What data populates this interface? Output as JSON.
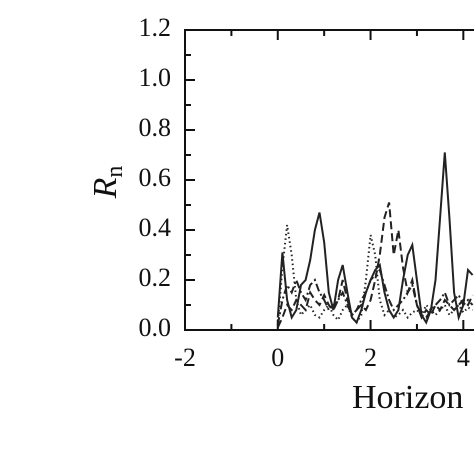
{
  "chart_data": {
    "type": "line",
    "ylabel": "R",
    "ylabel_subscript": "n",
    "xlabel": "Horizon",
    "x": [
      0,
      0.1,
      0.2,
      0.3,
      0.4,
      0.5,
      0.6,
      0.7,
      0.8,
      0.9,
      1.0,
      1.1,
      1.2,
      1.3,
      1.4,
      1.5,
      1.6,
      1.7,
      1.8,
      1.9,
      2.0,
      2.1,
      2.2,
      2.3,
      2.4,
      2.5,
      2.6,
      2.7,
      2.8,
      2.9,
      3.0,
      3.1,
      3.2,
      3.3,
      3.4,
      3.5,
      3.6,
      3.7,
      3.8,
      3.9,
      4.0,
      4.1,
      4.2
    ],
    "series": [
      {
        "color": "#222",
        "dash": "solid",
        "values": [
          0.05,
          0.31,
          0.12,
          0.05,
          0.08,
          0.18,
          0.2,
          0.28,
          0.4,
          0.47,
          0.35,
          0.15,
          0.08,
          0.2,
          0.26,
          0.15,
          0.05,
          0.03,
          0.08,
          0.15,
          0.2,
          0.24,
          0.26,
          0.15,
          0.08,
          0.05,
          0.08,
          0.2,
          0.3,
          0.34,
          0.2,
          0.06,
          0.03,
          0.08,
          0.2,
          0.45,
          0.71,
          0.45,
          0.15,
          0.05,
          0.1,
          0.24,
          0.22
        ]
      },
      {
        "color": "#222",
        "dash": "dotted",
        "values": [
          0.02,
          0.25,
          0.42,
          0.3,
          0.12,
          0.06,
          0.08,
          0.1,
          0.06,
          0.05,
          0.08,
          0.1,
          0.06,
          0.04,
          0.08,
          0.1,
          0.05,
          0.03,
          0.06,
          0.2,
          0.38,
          0.3,
          0.12,
          0.06,
          0.08,
          0.05,
          0.06,
          0.08,
          0.05,
          0.07,
          0.08,
          0.06,
          0.1,
          0.08,
          0.06,
          0.08,
          0.1,
          0.06,
          0.08,
          0.1,
          0.07,
          0.09,
          0.08
        ]
      },
      {
        "color": "#222",
        "dash": "dashed",
        "values": [
          0.01,
          0.05,
          0.1,
          0.08,
          0.12,
          0.1,
          0.08,
          0.15,
          0.12,
          0.1,
          0.14,
          0.1,
          0.08,
          0.12,
          0.2,
          0.12,
          0.06,
          0.08,
          0.1,
          0.08,
          0.12,
          0.2,
          0.3,
          0.45,
          0.51,
          0.3,
          0.4,
          0.25,
          0.15,
          0.2,
          0.1,
          0.05,
          0.08,
          0.06,
          0.1,
          0.08,
          0.12,
          0.1,
          0.08,
          0.1,
          0.12,
          0.1,
          0.14
        ]
      },
      {
        "color": "#222",
        "dash": "dashdot",
        "values": [
          0.02,
          0.12,
          0.18,
          0.15,
          0.2,
          0.15,
          0.12,
          0.18,
          0.2,
          0.15,
          0.12,
          0.08,
          0.1,
          0.12,
          0.15,
          0.1,
          0.06,
          0.08,
          0.12,
          0.15,
          0.2,
          0.22,
          0.24,
          0.18,
          0.12,
          0.08,
          0.1,
          0.12,
          0.15,
          0.18,
          0.1,
          0.06,
          0.05,
          0.08,
          0.1,
          0.12,
          0.15,
          0.1,
          0.12,
          0.14,
          0.1,
          0.12,
          0.1
        ]
      }
    ],
    "xlim": [
      -2,
      4.23
    ],
    "xticks": [
      -2,
      0,
      2,
      4
    ],
    "xticks_minor": [
      -1,
      1,
      3
    ],
    "ylim": [
      0,
      1.2
    ],
    "yticks": [
      {
        "value": 0,
        "label": "0.0"
      },
      0.2,
      0.4,
      0.6,
      0.8,
      {
        "value": 1,
        "label": "1.0"
      },
      1.2
    ],
    "yticks_minor": [
      0.1,
      0.3,
      0.5,
      0.7,
      0.9,
      1.1
    ]
  }
}
